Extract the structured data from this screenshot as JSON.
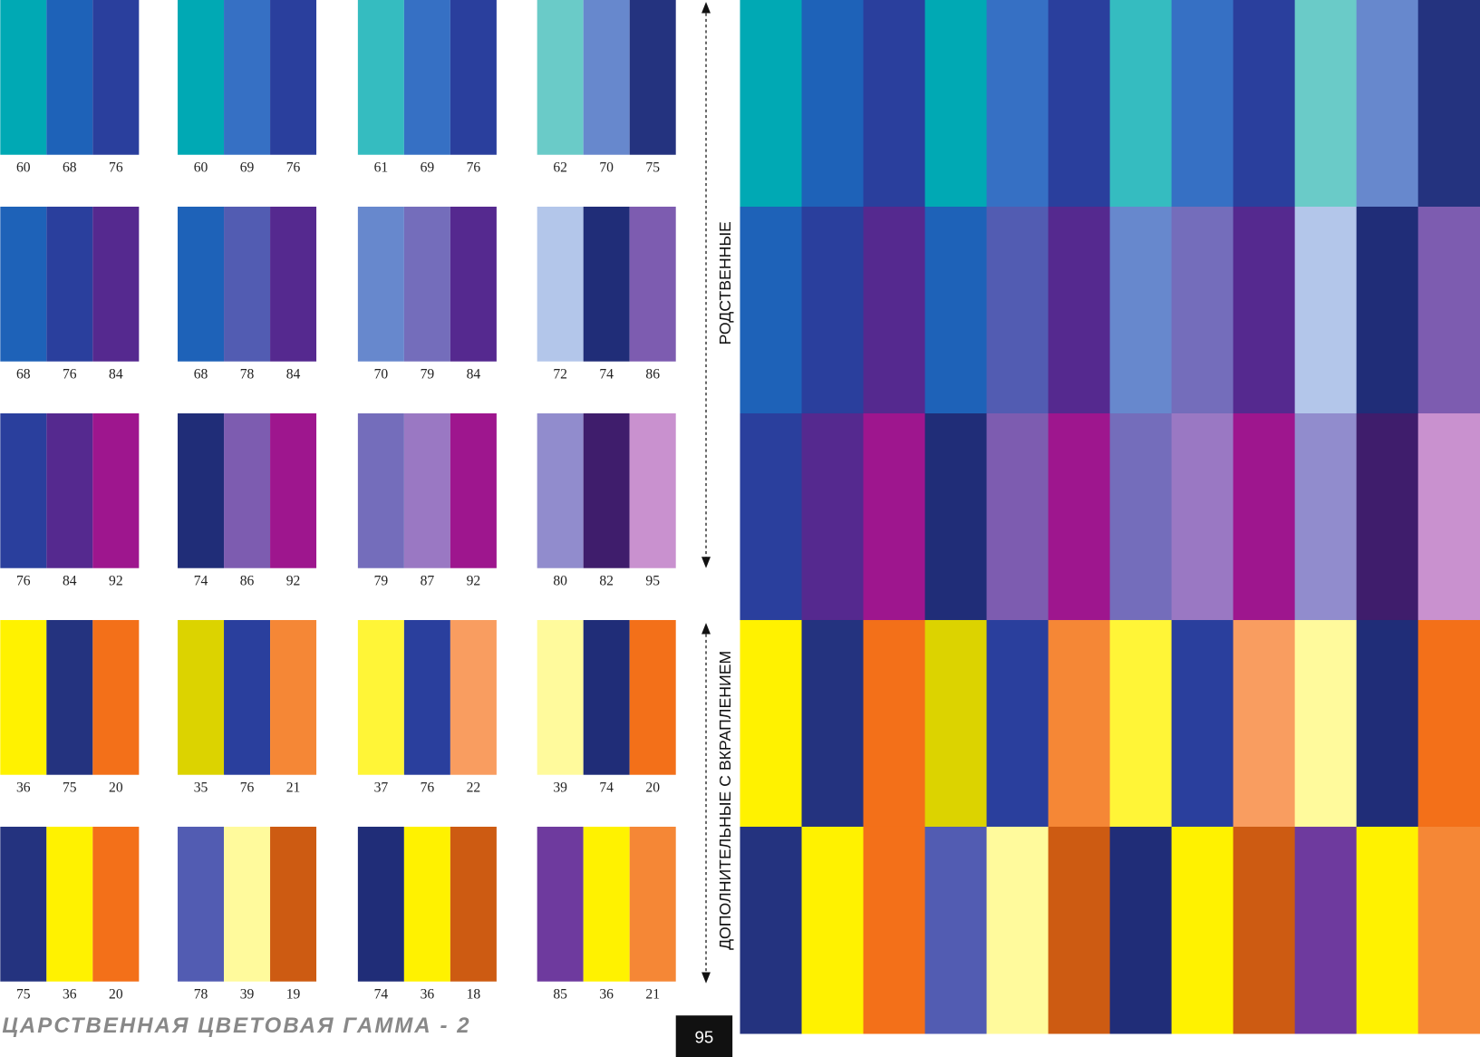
{
  "rows": [
    {
      "groups": [
        {
          "swatches": [
            {
              "color": "#00a9b4",
              "label": 60
            },
            {
              "color": "#1e62b8",
              "label": 68
            },
            {
              "color": "#2a3f9d",
              "label": 76
            }
          ]
        },
        {
          "swatches": [
            {
              "color": "#00a9b4",
              "label": 60
            },
            {
              "color": "#3670c4",
              "label": 69
            },
            {
              "color": "#2a3f9d",
              "label": 76
            }
          ]
        },
        {
          "swatches": [
            {
              "color": "#35bcc0",
              "label": 61
            },
            {
              "color": "#3670c4",
              "label": 69
            },
            {
              "color": "#2a3f9d",
              "label": 76
            }
          ]
        },
        {
          "swatches": [
            {
              "color": "#6acbc8",
              "label": 62
            },
            {
              "color": "#6788cd",
              "label": 70
            },
            {
              "color": "#24337f",
              "label": 75
            }
          ]
        }
      ]
    },
    {
      "groups": [
        {
          "swatches": [
            {
              "color": "#1e62b8",
              "label": 68
            },
            {
              "color": "#2a3f9d",
              "label": 76
            },
            {
              "color": "#55298f",
              "label": 84
            }
          ]
        },
        {
          "swatches": [
            {
              "color": "#1e62b8",
              "label": 68
            },
            {
              "color": "#525cb2",
              "label": 78
            },
            {
              "color": "#55298f",
              "label": 84
            }
          ]
        },
        {
          "swatches": [
            {
              "color": "#6788cd",
              "label": 70
            },
            {
              "color": "#746dbb",
              "label": 79
            },
            {
              "color": "#55298f",
              "label": 84
            }
          ]
        },
        {
          "swatches": [
            {
              "color": "#b3c6ea",
              "label": 72
            },
            {
              "color": "#202d78",
              "label": 74
            },
            {
              "color": "#7d5cb0",
              "label": 86
            }
          ]
        }
      ]
    },
    {
      "groups": [
        {
          "swatches": [
            {
              "color": "#2a3f9d",
              "label": 76
            },
            {
              "color": "#55298f",
              "label": 84
            },
            {
              "color": "#9e168e",
              "label": 92
            }
          ]
        },
        {
          "swatches": [
            {
              "color": "#202d78",
              "label": 74
            },
            {
              "color": "#7d5cb0",
              "label": 86
            },
            {
              "color": "#9e168e",
              "label": 92
            }
          ]
        },
        {
          "swatches": [
            {
              "color": "#746dbb",
              "label": 79
            },
            {
              "color": "#9a78c3",
              "label": 87
            },
            {
              "color": "#9e168e",
              "label": 92
            }
          ]
        },
        {
          "swatches": [
            {
              "color": "#918ccd",
              "label": 80
            },
            {
              "color": "#3f1d6c",
              "label": 82
            },
            {
              "color": "#c991cf",
              "label": 95
            }
          ]
        }
      ]
    },
    {
      "groups": [
        {
          "swatches": [
            {
              "color": "#fff200",
              "label": 36
            },
            {
              "color": "#24337f",
              "label": 75
            },
            {
              "color": "#f37019",
              "label": 20
            }
          ]
        },
        {
          "swatches": [
            {
              "color": "#dcd300",
              "label": 35
            },
            {
              "color": "#2a3f9d",
              "label": 76
            },
            {
              "color": "#f58736",
              "label": 21
            }
          ]
        },
        {
          "swatches": [
            {
              "color": "#fff537",
              "label": 37
            },
            {
              "color": "#2a3f9d",
              "label": 76
            },
            {
              "color": "#f99d60",
              "label": 22
            }
          ]
        },
        {
          "swatches": [
            {
              "color": "#fffa9c",
              "label": 39
            },
            {
              "color": "#202d78",
              "label": 74
            },
            {
              "color": "#f37019",
              "label": 20
            }
          ]
        }
      ]
    },
    {
      "groups": [
        {
          "swatches": [
            {
              "color": "#24337f",
              "label": 75
            },
            {
              "color": "#fff200",
              "label": 36
            },
            {
              "color": "#f37019",
              "label": 20
            }
          ]
        },
        {
          "swatches": [
            {
              "color": "#525cb2",
              "label": 78
            },
            {
              "color": "#fffa9c",
              "label": 39
            },
            {
              "color": "#cd5b12",
              "label": 19
            }
          ]
        },
        {
          "swatches": [
            {
              "color": "#202d78",
              "label": 74
            },
            {
              "color": "#fff200",
              "label": 36
            },
            {
              "color": "#cd5b12",
              "label": 18
            }
          ]
        },
        {
          "swatches": [
            {
              "color": "#6e3a9e",
              "label": 85
            },
            {
              "color": "#fff200",
              "label": 36
            },
            {
              "color": "#f58736",
              "label": 21
            }
          ]
        }
      ]
    }
  ],
  "side_labels": {
    "related": "РОДСТВЕННЫЕ",
    "complementary": "ДОПОЛНИТЕЛЬНЫЕ С ВКРАПЛЕНИЕМ"
  },
  "footer": {
    "title": "ЦАРСТВЕННАЯ ЦВЕТОВАЯ ГАММА - 2",
    "page_number": "95"
  }
}
